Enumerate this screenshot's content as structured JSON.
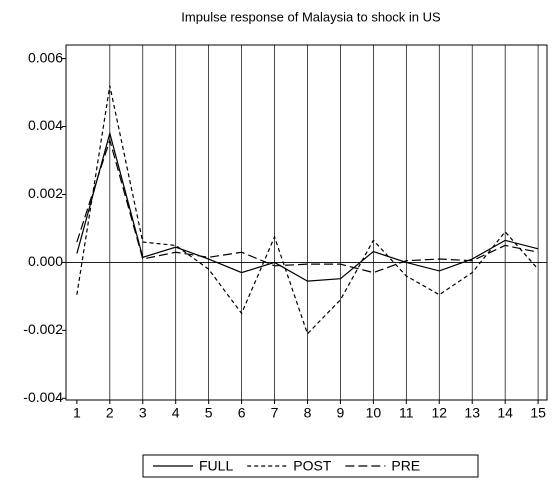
{
  "chart_data": {
    "type": "line",
    "title": "Impulse response of Malaysia to shock in US",
    "x": [
      1,
      2,
      3,
      4,
      5,
      6,
      7,
      8,
      9,
      10,
      11,
      12,
      13,
      14,
      15
    ],
    "series": [
      {
        "name": "FULL",
        "color": "#000000",
        "dash": "none",
        "values": [
          0.00026,
          0.0038,
          0.00015,
          0.00045,
          0.0001,
          -0.0003,
          0.0,
          -0.00055,
          -0.00048,
          0.00032,
          0.0,
          -0.00025,
          0.0001,
          0.00065,
          0.0004
        ]
      },
      {
        "name": "POST",
        "color": "#000000",
        "dash": "4,3",
        "values": [
          -0.00095,
          0.0052,
          0.0006,
          0.0005,
          -0.0002,
          -0.0015,
          0.00075,
          -0.0021,
          -0.0011,
          0.00065,
          -0.0004,
          -0.00095,
          -0.0003,
          0.0009,
          -0.0002
        ]
      },
      {
        "name": "PRE",
        "color": "#000000",
        "dash": "9,4",
        "values": [
          0.0006,
          0.0036,
          0.0001,
          0.0003,
          0.00015,
          0.0003,
          -0.0001,
          -5e-05,
          -5e-05,
          -0.0003,
          5e-05,
          0.0001,
          5e-05,
          0.0005,
          0.0003
        ]
      }
    ],
    "xlim": [
      0.67,
      15.27
    ],
    "xticks": [
      1,
      2,
      3,
      4,
      5,
      6,
      7,
      8,
      9,
      10,
      11,
      12,
      13,
      14,
      15
    ],
    "ylim": [
      -0.00405,
      0.0064
    ],
    "yticks": [
      {
        "value": -0.004,
        "label": "-0.004"
      },
      {
        "value": -0.002,
        "label": "-0.002"
      },
      {
        "value": 0,
        "label": "0.000"
      },
      {
        "value": 0.002,
        "label": "0.002"
      },
      {
        "value": 0.004,
        "label": "0.004"
      },
      {
        "value": 0.006,
        "label": "0.006"
      }
    ],
    "grid": "x",
    "zero_line": true
  }
}
